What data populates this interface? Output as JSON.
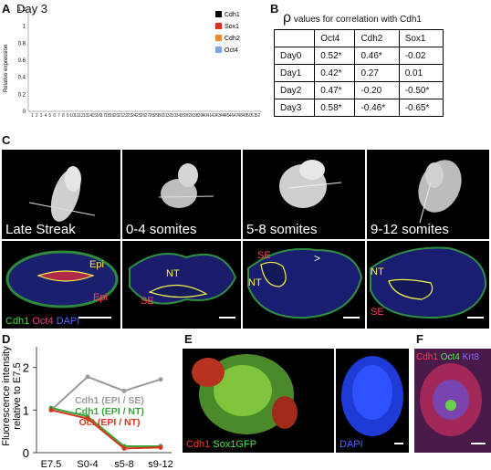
{
  "panelA": {
    "label": "A",
    "title": "Day 3",
    "ylabel": "Relative expression",
    "yticks": [
      "1.2",
      "1",
      "0.8",
      "0.6",
      "0.4",
      "0.2",
      "0"
    ],
    "xticks": [
      "1",
      "2",
      "3",
      "4",
      "5",
      "6",
      "7",
      "8",
      "9",
      "10",
      "11",
      "12",
      "13",
      "14",
      "15",
      "16",
      "17",
      "18",
      "19",
      "20",
      "21",
      "22",
      "23",
      "24",
      "25",
      "26",
      "27",
      "28",
      "29",
      "30",
      "31",
      "32",
      "33",
      "34",
      "35",
      "36",
      "36",
      "38",
      "39",
      "40",
      "41",
      "42",
      "43",
      "44",
      "45",
      "46",
      "47",
      "48",
      "49",
      "50",
      "51",
      "52"
    ],
    "legend": [
      {
        "name": "Cdh1",
        "color": "#000000"
      },
      {
        "name": "Sox1",
        "color": "#d8361c"
      },
      {
        "name": "Cdh2",
        "color": "#ef8a2c"
      },
      {
        "name": "Oct4",
        "color": "#7fa4de"
      }
    ]
  },
  "panelB": {
    "label": "B",
    "title_symbol": "ρ",
    "title": " values for correlation with Cdh1",
    "headers": [
      "",
      "Oct4",
      "Cdh2",
      "Sox1"
    ],
    "rows": [
      [
        "Day0",
        "0.52*",
        "0.46*",
        "-0.02"
      ],
      [
        "Day1",
        "0.42*",
        "0.27",
        "0.01"
      ],
      [
        "Day2",
        "0.47*",
        "-0.20",
        "-0.50*"
      ],
      [
        "Day3",
        "0.58*",
        "-0.46*",
        "-0.65*"
      ]
    ]
  },
  "panelC": {
    "label": "C",
    "stages": [
      "Late Streak",
      "0-4 somites",
      "5-8 somites",
      "9-12 somites"
    ],
    "annotations": {
      "p1": [
        "Epi",
        "Epi"
      ],
      "p2": [
        "NT",
        "SE"
      ],
      "p3": [
        "SE",
        "NT",
        ">"
      ],
      "p4": [
        "NT",
        "SE"
      ]
    },
    "legend": [
      {
        "text": "Cdh1 ",
        "color": "#3ddc3d"
      },
      {
        "text": "Oct4 ",
        "color": "#e0408a"
      },
      {
        "text": "DAPI",
        "color": "#5566ff"
      }
    ]
  },
  "panelD": {
    "label": "D",
    "ylabel": "Fluorescence intensity relative to E7.5",
    "yticks": [
      "2",
      "1",
      "0"
    ],
    "categories": [
      "E7.5",
      "S0-4",
      "s5-8",
      "s9-12"
    ],
    "series": [
      {
        "name": "Cdh1 (EPI / SE)",
        "color": "#9a9a9a",
        "values": [
          1.0,
          1.78,
          1.45,
          1.72
        ]
      },
      {
        "name": "Cdh1 (EPI / NT)",
        "color": "#3aa23a",
        "values": [
          1.05,
          0.85,
          0.15,
          0.15
        ]
      },
      {
        "name": "Oct (EPI / NT)",
        "color": "#d8361c",
        "values": [
          1.0,
          0.8,
          0.1,
          0.12
        ]
      }
    ]
  },
  "panelE": {
    "label": "E",
    "legend1": [
      {
        "text": "Cdh1 ",
        "color": "#ff3333"
      },
      {
        "text": "Sox1GFP",
        "color": "#44ee44"
      }
    ],
    "legend2": "DAPI"
  },
  "panelF": {
    "label": "F",
    "legend": [
      {
        "text": "Cdh1 ",
        "color": "#ff3355"
      },
      {
        "text": "Oct4 ",
        "color": "#44ee44"
      },
      {
        "text": "Krt8",
        "color": "#8866ff"
      }
    ]
  }
}
